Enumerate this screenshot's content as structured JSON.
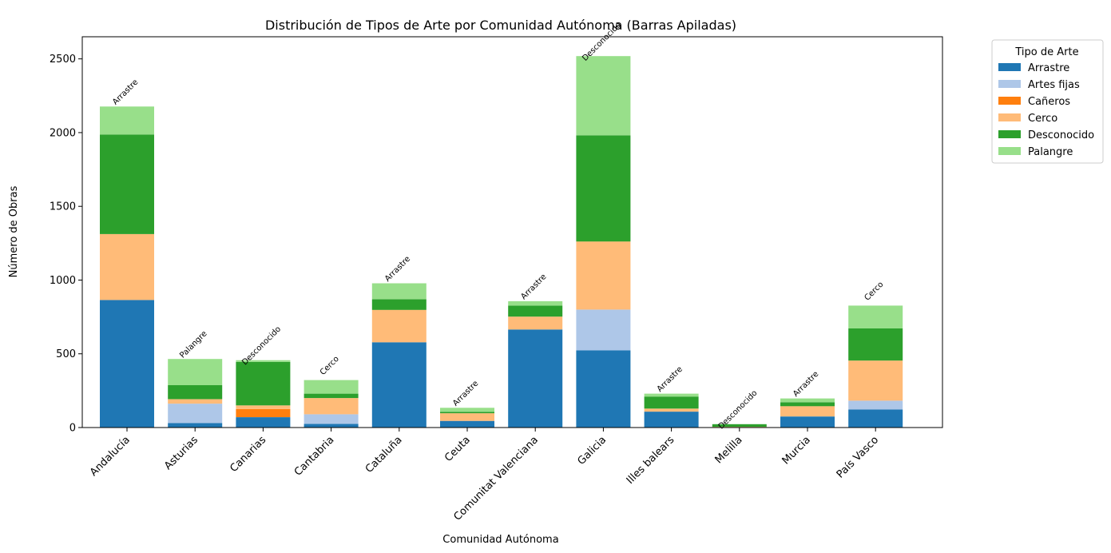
{
  "chart_data": {
    "type": "bar",
    "stacked": true,
    "title": "Distribución de Tipos de Arte por Comunidad Autónoma (Barras Apiladas)",
    "xlabel": "Comunidad Autónoma",
    "ylabel": "Número de Obras",
    "ylim": [
      0,
      2650
    ],
    "yticks": [
      0,
      500,
      1000,
      1500,
      2000,
      2500
    ],
    "grid": false,
    "legend": {
      "title": "Tipo de Arte",
      "placement": "outside-top-right"
    },
    "categories": [
      "Andalucía",
      "Asturias",
      "Canarias",
      "Cantabria",
      "Cataluña",
      "Ceuta",
      "Comunitat Valenciana",
      "Galicia",
      "Illes balears",
      "Melilla",
      "Murcia",
      "País Vasco"
    ],
    "series": [
      {
        "name": "Arrastre",
        "color": "#1f77b4",
        "values": [
          865,
          30,
          70,
          25,
          578,
          45,
          665,
          523,
          108,
          3,
          75,
          122
        ]
      },
      {
        "name": "Artes fijas",
        "color": "#aec7e8",
        "values": [
          0,
          132,
          0,
          65,
          0,
          0,
          0,
          277,
          0,
          0,
          0,
          60
        ]
      },
      {
        "name": "Cañeros",
        "color": "#ff7f0e",
        "values": [
          0,
          0,
          55,
          0,
          0,
          0,
          0,
          0,
          0,
          0,
          0,
          0
        ]
      },
      {
        "name": "Cerco",
        "color": "#ffbb78",
        "values": [
          447,
          30,
          25,
          110,
          220,
          52,
          87,
          462,
          20,
          2,
          70,
          272
        ]
      },
      {
        "name": "Desconocido",
        "color": "#2ca02c",
        "values": [
          675,
          95,
          295,
          30,
          72,
          10,
          75,
          720,
          82,
          18,
          27,
          218
        ]
      },
      {
        "name": "Palangre",
        "color": "#98df8a",
        "values": [
          190,
          178,
          12,
          92,
          108,
          27,
          30,
          537,
          20,
          0,
          25,
          155
        ]
      }
    ],
    "annotations": [
      "Arrastre",
      "Palangre",
      "Desconocido",
      "Cerco",
      "Arrastre",
      "Arrastre",
      "Arrastre",
      "Desconocido",
      "Arrastre",
      "Desconocido",
      "Arrastre",
      "Cerco"
    ]
  }
}
